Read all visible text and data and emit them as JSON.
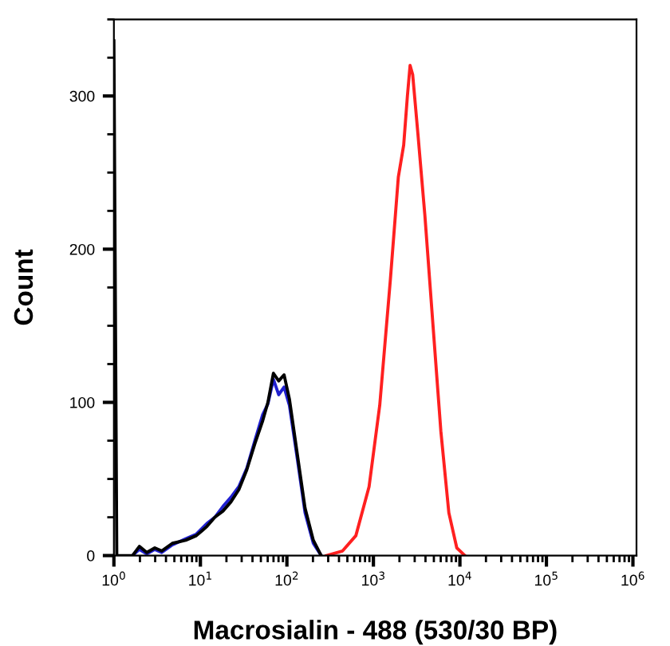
{
  "chart_data": {
    "type": "line",
    "xlabel": "Macrosialin - 488 (530/30 BP)",
    "ylabel": "Count",
    "log": "x",
    "xlim": [
      1,
      1100000
    ],
    "xticks": [
      {
        "value": 1,
        "label": "10$^{0}$"
      },
      {
        "value": 10,
        "label": "10$^{1}$"
      },
      {
        "value": 100,
        "label": "10$^{2}$"
      },
      {
        "value": 1000,
        "label": "10$^{3}$"
      },
      {
        "value": 10000,
        "label": "10$^{4}$"
      },
      {
        "value": 100000,
        "label": "10$^{5}$"
      },
      {
        "value": 1000000,
        "label": "10$^{6}$"
      }
    ],
    "ylim": [
      0,
      350
    ],
    "yticks": [
      0,
      100,
      200,
      300
    ],
    "grid": false,
    "legend": false,
    "marker": "none",
    "line_style": "solid",
    "series": [
      {
        "color": "#ff2020",
        "x": [
          287,
          440,
          627,
          891,
          1183,
          1570,
          1941,
          2239,
          2472,
          2655,
          2844,
          3273,
          3936,
          4875,
          6026,
          7447,
          9204,
          11400
        ],
        "values": [
          0,
          3,
          13,
          45,
          98,
          180,
          247,
          268,
          300,
          320,
          314,
          275,
          222,
          151,
          81,
          28,
          5,
          0
        ]
      },
      {
        "color": "#2020d0",
        "x": [
          1.64,
          1.97,
          2.4,
          2.97,
          3.57,
          4.74,
          6.76,
          8.97,
          11.9,
          14.7,
          18.2,
          22.5,
          27.8,
          34.4,
          42.6,
          52.5,
          60.3,
          69.8,
          80.4,
          92.7,
          107,
          132,
          162,
          202,
          249
        ],
        "values": [
          0,
          4,
          1,
          4,
          2,
          7,
          11,
          14,
          21,
          25,
          32,
          38,
          45,
          57,
          75,
          92,
          99,
          115,
          105,
          110,
          98,
          63,
          28,
          8,
          0
        ]
      },
      {
        "color": "#000000",
        "x": [
          1,
          1.08,
          1.64,
          1.97,
          2.4,
          2.97,
          3.57,
          4.74,
          6.76,
          8.97,
          11.9,
          14.7,
          18.2,
          22.5,
          27.8,
          34.4,
          42.6,
          52.5,
          60.3,
          69.8,
          80.4,
          92.7,
          107,
          132,
          162,
          202,
          249
        ],
        "values": [
          336,
          0,
          0,
          6,
          2,
          5,
          3,
          8,
          10,
          13,
          19,
          25,
          29,
          35,
          43,
          56,
          73,
          88,
          100,
          119,
          114,
          118,
          102,
          66,
          31,
          10,
          0
        ]
      }
    ]
  }
}
